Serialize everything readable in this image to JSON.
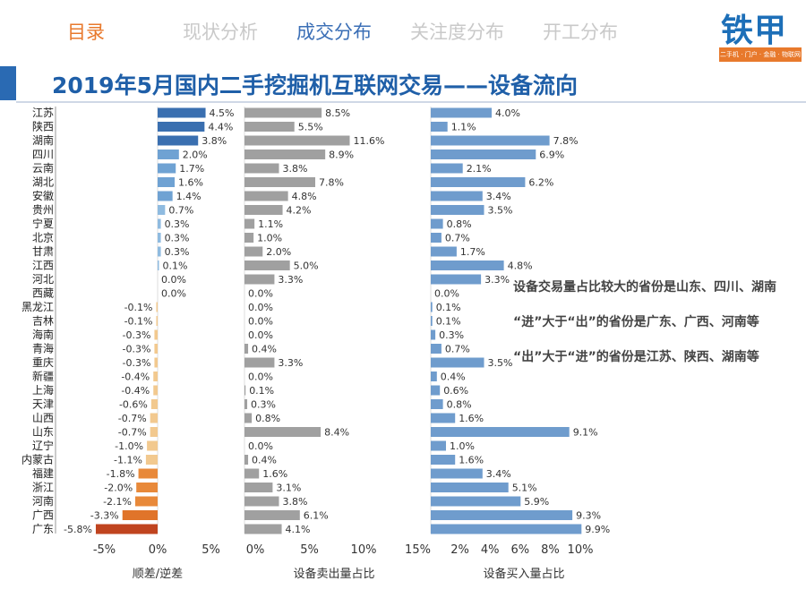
{
  "nav": {
    "current": "目录",
    "items": [
      "现状分析",
      "成交分布",
      "关注度分布",
      "开工分布"
    ],
    "active_index": 1
  },
  "logo": {
    "name": "铁甲",
    "tagline": "二手机 · 门户 · 金融 · 物联网"
  },
  "title": "2019年5月国内二手挖掘机互联网交易——设备流向",
  "annotations": [
    "设备交易量占比较大的省份是山东、四川、湖南",
    "“进”大于“出”的省份是广东、广西、河南等",
    "“出”大于“进”的省份是江苏、陕西、湖南等"
  ],
  "colors": {
    "nav_active": "#3b6fb6",
    "nav_current": "#e8792c",
    "title": "#1f5fa8",
    "sell_bar": "#a0a0a0",
    "buy_bar": "#6f9ccd",
    "neg_dark": "#c0441f",
    "neg_mid": "#e8893a",
    "neg_light": "#f2c98f",
    "pos_dark": "#3a6fb0",
    "pos_light": "#8fbbe0"
  },
  "chart_data": [
    {
      "type": "bar",
      "orientation": "horizontal",
      "xlabel": "顺差/逆差",
      "xlim": [
        -6,
        6
      ],
      "xticks": [
        "-5%",
        "0%",
        "5%"
      ],
      "categories": [
        "江苏",
        "陕西",
        "湖南",
        "四川",
        "云南",
        "湖北",
        "安徽",
        "贵州",
        "宁夏",
        "北京",
        "甘肃",
        "江西",
        "河北",
        "西藏",
        "黑龙江",
        "吉林",
        "海南",
        "青海",
        "重庆",
        "新疆",
        "上海",
        "天津",
        "山西",
        "山东",
        "辽宁",
        "内蒙古",
        "福建",
        "浙江",
        "河南",
        "广西",
        "广东"
      ],
      "values": [
        4.5,
        4.4,
        3.8,
        2.0,
        1.7,
        1.6,
        1.4,
        0.7,
        0.3,
        0.3,
        0.3,
        0.1,
        0.0,
        0.0,
        -0.1,
        -0.1,
        -0.3,
        -0.3,
        -0.3,
        -0.4,
        -0.4,
        -0.6,
        -0.7,
        -0.7,
        -1.0,
        -1.1,
        -1.8,
        -2.0,
        -2.1,
        -3.3,
        -5.8
      ],
      "labels": [
        "4.5%",
        "4.4%",
        "3.8%",
        "2.0%",
        "1.7%",
        "1.6%",
        "1.4%",
        "0.7%",
        "0.3%",
        "0.3%",
        "0.3%",
        "0.1%",
        "0.0%",
        "0.0%",
        "-0.1%",
        "-0.1%",
        "-0.3%",
        "-0.3%",
        "-0.3%",
        "-0.4%",
        "-0.4%",
        "-0.6%",
        "-0.7%",
        "-0.7%",
        "-1.0%",
        "-1.1%",
        "-1.8%",
        "-2.0%",
        "-2.1%",
        "-3.3%",
        "-5.8%"
      ]
    },
    {
      "type": "bar",
      "orientation": "horizontal",
      "xlabel": "设备卖出量占比",
      "xlim": [
        0,
        15
      ],
      "xticks": [
        "0%",
        "5%",
        "10%",
        "15%"
      ],
      "categories": [
        "江苏",
        "陕西",
        "湖南",
        "四川",
        "云南",
        "湖北",
        "安徽",
        "贵州",
        "宁夏",
        "北京",
        "甘肃",
        "江西",
        "河北",
        "西藏",
        "黑龙江",
        "吉林",
        "海南",
        "青海",
        "重庆",
        "新疆",
        "上海",
        "天津",
        "山西",
        "山东",
        "辽宁",
        "内蒙古",
        "福建",
        "浙江",
        "河南",
        "广西",
        "广东"
      ],
      "values": [
        8.5,
        5.5,
        11.6,
        8.9,
        3.8,
        7.8,
        4.8,
        4.2,
        1.1,
        1.0,
        2.0,
        5.0,
        3.3,
        0.0,
        0.0,
        0.0,
        0.0,
        0.4,
        3.3,
        0.0,
        0.1,
        0.3,
        0.8,
        8.4,
        0.0,
        0.4,
        1.6,
        3.1,
        3.8,
        6.1,
        4.1
      ],
      "labels": [
        "8.5%",
        "5.5%",
        "11.6%",
        "8.9%",
        "3.8%",
        "7.8%",
        "4.8%",
        "4.2%",
        "1.1%",
        "1.0%",
        "2.0%",
        "5.0%",
        "3.3%",
        "0.0%",
        "0.0%",
        "0.0%",
        "0.0%",
        "0.4%",
        "3.3%",
        "0.0%",
        "0.1%",
        "0.3%",
        "0.8%",
        "8.4%",
        "0.0%",
        "0.4%",
        "1.6%",
        "3.1%",
        "3.8%",
        "6.1%",
        "4.1%"
      ]
    },
    {
      "type": "bar",
      "orientation": "horizontal",
      "xlabel": "设备买入量占比",
      "xlim": [
        0,
        10
      ],
      "xticks": [
        "2%",
        "4%",
        "6%",
        "8%",
        "10%"
      ],
      "categories": [
        "江苏",
        "陕西",
        "湖南",
        "四川",
        "云南",
        "湖北",
        "安徽",
        "贵州",
        "宁夏",
        "北京",
        "甘肃",
        "江西",
        "河北",
        "西藏",
        "黑龙江",
        "吉林",
        "海南",
        "青海",
        "重庆",
        "新疆",
        "上海",
        "天津",
        "山西",
        "山东",
        "辽宁",
        "内蒙古",
        "福建",
        "浙江",
        "河南",
        "广西",
        "广东"
      ],
      "values": [
        4.0,
        1.1,
        7.8,
        6.9,
        2.1,
        6.2,
        3.4,
        3.5,
        0.8,
        0.7,
        1.7,
        4.8,
        3.3,
        0.0,
        0.1,
        0.1,
        0.3,
        0.7,
        3.5,
        0.4,
        0.6,
        0.8,
        1.6,
        9.1,
        1.0,
        1.6,
        3.4,
        5.1,
        5.9,
        9.3,
        9.9
      ],
      "labels": [
        "4.0%",
        "1.1%",
        "7.8%",
        "6.9%",
        "2.1%",
        "6.2%",
        "3.4%",
        "3.5%",
        "0.8%",
        "0.7%",
        "1.7%",
        "4.8%",
        "3.3%",
        "0.0%",
        "0.1%",
        "0.1%",
        "0.3%",
        "0.7%",
        "3.5%",
        "0.4%",
        "0.6%",
        "0.8%",
        "1.6%",
        "9.1%",
        "1.0%",
        "1.6%",
        "3.4%",
        "5.1%",
        "5.9%",
        "9.3%",
        "9.9%"
      ]
    }
  ]
}
